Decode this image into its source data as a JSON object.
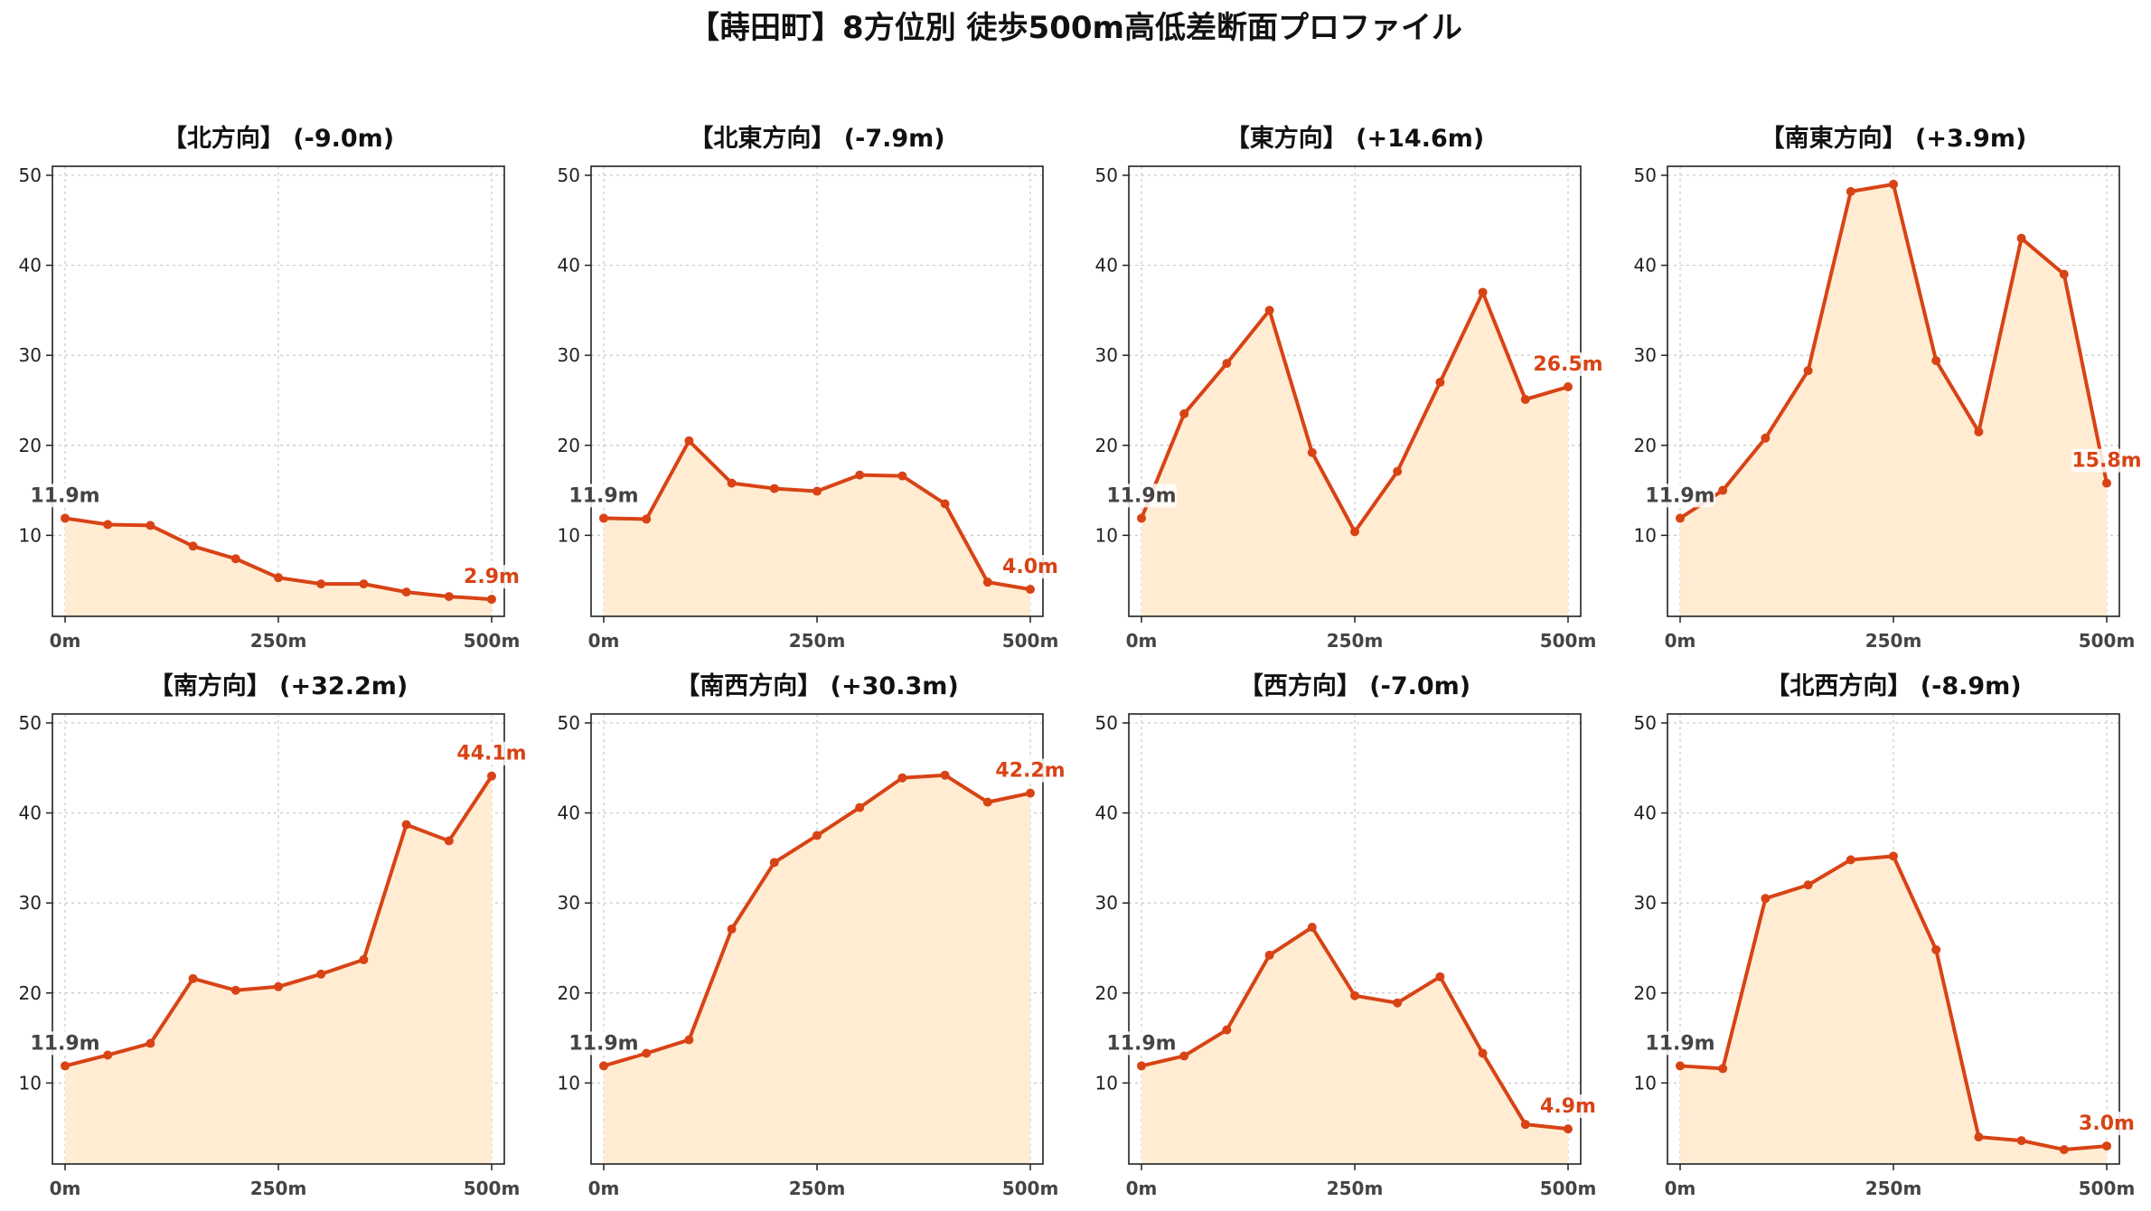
{
  "figure": {
    "title": "【蒔田町】8方位別 徒歩500m高低差断面プロファイル",
    "colors": {
      "line": "#d84315",
      "fill": "#ffecd2",
      "start_label": "#444444",
      "end_label": "#d84315",
      "grid": "#c8c8c8"
    }
  },
  "chart_data": [
    {
      "type": "area",
      "title": "【北方向】 (-9.0m)",
      "x": [
        0,
        50,
        100,
        150,
        200,
        250,
        300,
        350,
        400,
        450,
        500
      ],
      "values": [
        11.9,
        11.2,
        11.1,
        8.8,
        7.4,
        5.3,
        4.6,
        4.6,
        3.7,
        3.2,
        2.9
      ],
      "start_label": "11.9m",
      "end_label": "2.9m",
      "xticks": [
        "0m",
        "250m",
        "500m"
      ],
      "yticks": [
        "10",
        "20",
        "30",
        "40",
        "50"
      ],
      "xlim": [
        0,
        500
      ],
      "ylim": [
        1,
        51
      ],
      "grid": true
    },
    {
      "type": "area",
      "title": "【北東方向】 (-7.9m)",
      "x": [
        0,
        50,
        100,
        150,
        200,
        250,
        300,
        350,
        400,
        450,
        500
      ],
      "values": [
        11.9,
        11.8,
        20.5,
        15.8,
        15.2,
        14.9,
        16.7,
        16.6,
        13.5,
        4.8,
        4.0
      ],
      "start_label": "11.9m",
      "end_label": "4.0m",
      "xticks": [
        "0m",
        "250m",
        "500m"
      ],
      "yticks": [
        "10",
        "20",
        "30",
        "40",
        "50"
      ],
      "xlim": [
        0,
        500
      ],
      "ylim": [
        1,
        51
      ],
      "grid": true
    },
    {
      "type": "area",
      "title": "【東方向】 (+14.6m)",
      "x": [
        0,
        50,
        100,
        150,
        200,
        250,
        300,
        350,
        400,
        450,
        500
      ],
      "values": [
        11.9,
        23.5,
        29.1,
        35.0,
        19.2,
        10.4,
        17.1,
        27.0,
        37.0,
        25.1,
        26.5
      ],
      "start_label": "11.9m",
      "end_label": "26.5m",
      "xticks": [
        "0m",
        "250m",
        "500m"
      ],
      "yticks": [
        "10",
        "20",
        "30",
        "40",
        "50"
      ],
      "xlim": [
        0,
        500
      ],
      "ylim": [
        1,
        51
      ],
      "grid": true
    },
    {
      "type": "area",
      "title": "【南東方向】 (+3.9m)",
      "x": [
        0,
        50,
        100,
        150,
        200,
        250,
        300,
        350,
        400,
        450,
        500
      ],
      "values": [
        11.9,
        15.0,
        20.8,
        28.3,
        48.2,
        49.0,
        29.4,
        21.5,
        43.0,
        39.0,
        15.8
      ],
      "start_label": "11.9m",
      "end_label": "15.8m",
      "xticks": [
        "0m",
        "250m",
        "500m"
      ],
      "yticks": [
        "10",
        "20",
        "30",
        "40",
        "50"
      ],
      "xlim": [
        0,
        500
      ],
      "ylim": [
        1,
        51
      ],
      "grid": true
    },
    {
      "type": "area",
      "title": "【南方向】 (+32.2m)",
      "x": [
        0,
        50,
        100,
        150,
        200,
        250,
        300,
        350,
        400,
        450,
        500
      ],
      "values": [
        11.9,
        13.1,
        14.4,
        21.6,
        20.3,
        20.7,
        22.1,
        23.7,
        38.7,
        36.9,
        44.1
      ],
      "start_label": "11.9m",
      "end_label": "44.1m",
      "xticks": [
        "0m",
        "250m",
        "500m"
      ],
      "yticks": [
        "10",
        "20",
        "30",
        "40",
        "50"
      ],
      "xlim": [
        0,
        500
      ],
      "ylim": [
        1,
        51
      ],
      "grid": true
    },
    {
      "type": "area",
      "title": "【南西方向】 (+30.3m)",
      "x": [
        0,
        50,
        100,
        150,
        200,
        250,
        300,
        350,
        400,
        450,
        500
      ],
      "values": [
        11.9,
        13.3,
        14.8,
        27.1,
        34.5,
        37.5,
        40.6,
        43.9,
        44.2,
        41.2,
        42.2
      ],
      "start_label": "11.9m",
      "end_label": "42.2m",
      "xticks": [
        "0m",
        "250m",
        "500m"
      ],
      "yticks": [
        "10",
        "20",
        "30",
        "40",
        "50"
      ],
      "xlim": [
        0,
        500
      ],
      "ylim": [
        1,
        51
      ],
      "grid": true
    },
    {
      "type": "area",
      "title": "【西方向】 (-7.0m)",
      "x": [
        0,
        50,
        100,
        150,
        200,
        250,
        300,
        350,
        400,
        450,
        500
      ],
      "values": [
        11.9,
        13.0,
        15.9,
        24.2,
        27.3,
        19.7,
        18.9,
        21.8,
        13.3,
        5.4,
        4.9
      ],
      "start_label": "11.9m",
      "end_label": "4.9m",
      "xticks": [
        "0m",
        "250m",
        "500m"
      ],
      "yticks": [
        "10",
        "20",
        "30",
        "40",
        "50"
      ],
      "xlim": [
        0,
        500
      ],
      "ylim": [
        1,
        51
      ],
      "grid": true
    },
    {
      "type": "area",
      "title": "【北西方向】 (-8.9m)",
      "x": [
        0,
        50,
        100,
        150,
        200,
        250,
        300,
        350,
        400,
        450,
        500
      ],
      "values": [
        11.9,
        11.6,
        30.5,
        32.0,
        34.8,
        35.2,
        24.8,
        4.0,
        3.6,
        2.6,
        3.0
      ],
      "start_label": "11.9m",
      "end_label": "3.0m",
      "xticks": [
        "0m",
        "250m",
        "500m"
      ],
      "yticks": [
        "10",
        "20",
        "30",
        "40",
        "50"
      ],
      "xlim": [
        0,
        500
      ],
      "ylim": [
        1,
        51
      ],
      "grid": true
    }
  ]
}
